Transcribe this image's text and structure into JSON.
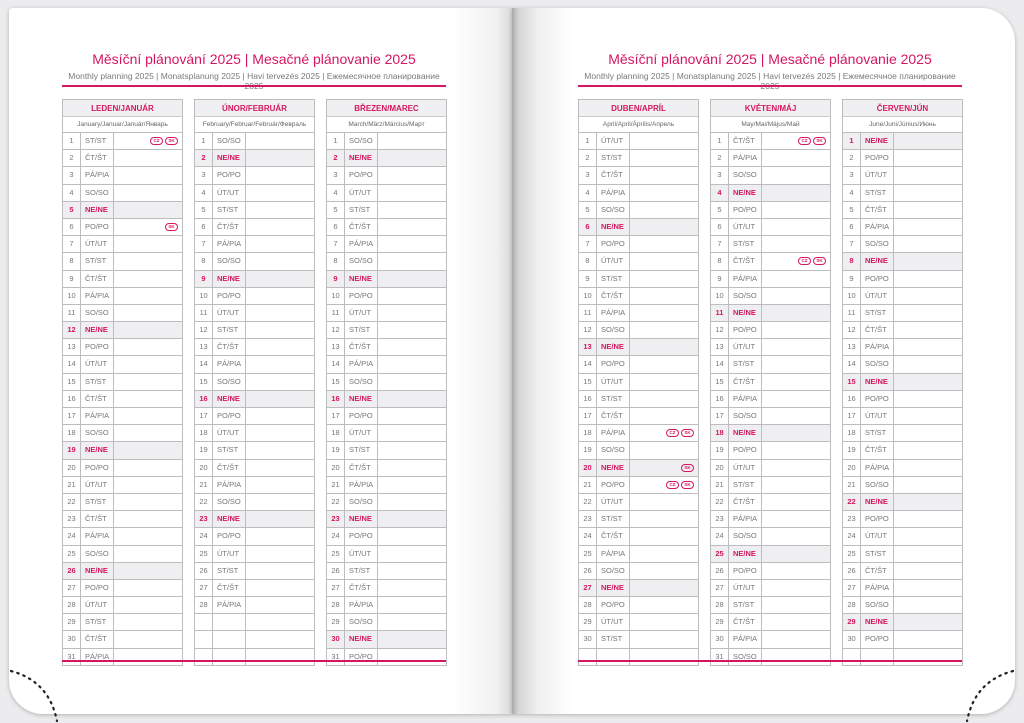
{
  "header": {
    "title": "Měsíční plánování 2025 | Mesačné plánovanie 2025",
    "subtitle": "Monthly planning 2025 | Monatsplanung 2025 | Havi tervezés 2025 | Ежемесячное планирование 2025"
  },
  "colors": {
    "accent": "#d5175f",
    "weekend_fill": "#efeef1",
    "grid": "#bdbdbd"
  },
  "months": [
    {
      "name": "LEDEN/JANUÁR",
      "sub": "January/Januar/Január/Январь",
      "days": [
        "ST/ST",
        "ČT/ŠT",
        "PÁ/PIA",
        "SO/SO",
        "NE/NE",
        "PO/PO",
        "ÚT/UT",
        "ST/ST",
        "ČT/ŠT",
        "PÁ/PIA",
        "SO/SO",
        "NE/NE",
        "PO/PO",
        "ÚT/UT",
        "ST/ST",
        "ČT/ŠT",
        "PÁ/PIA",
        "SO/SO",
        "NE/NE",
        "PO/PO",
        "ÚT/UT",
        "ST/ST",
        "ČT/ŠT",
        "PÁ/PIA",
        "SO/SO",
        "NE/NE",
        "PO/PO",
        "ÚT/UT",
        "ST/ST",
        "ČT/ŠT",
        "PÁ/PIA"
      ],
      "holidays": {
        "1": [
          "CZ",
          "SK"
        ],
        "6": [
          "SK"
        ]
      }
    },
    {
      "name": "ÚNOR/FEBRUÁR",
      "sub": "February/Februar/Február/Февраль",
      "days": [
        "SO/SO",
        "NE/NE",
        "PO/PO",
        "ÚT/UT",
        "ST/ST",
        "ČT/ŠT",
        "PÁ/PIA",
        "SO/SO",
        "NE/NE",
        "PO/PO",
        "ÚT/UT",
        "ST/ST",
        "ČT/ŠT",
        "PÁ/PIA",
        "SO/SO",
        "NE/NE",
        "PO/PO",
        "ÚT/UT",
        "ST/ST",
        "ČT/ŠT",
        "PÁ/PIA",
        "SO/SO",
        "NE/NE",
        "PO/PO",
        "ÚT/UT",
        "ST/ST",
        "ČT/ŠT",
        "PÁ/PIA"
      ],
      "holidays": {}
    },
    {
      "name": "BŘEZEN/MAREC",
      "sub": "March/März/Március/Март",
      "days": [
        "SO/SO",
        "NE/NE",
        "PO/PO",
        "ÚT/UT",
        "ST/ST",
        "ČT/ŠT",
        "PÁ/PIA",
        "SO/SO",
        "NE/NE",
        "PO/PO",
        "ÚT/UT",
        "ST/ST",
        "ČT/ŠT",
        "PÁ/PIA",
        "SO/SO",
        "NE/NE",
        "PO/PO",
        "ÚT/UT",
        "ST/ST",
        "ČT/ŠT",
        "PÁ/PIA",
        "SO/SO",
        "NE/NE",
        "PO/PO",
        "ÚT/UT",
        "ST/ST",
        "ČT/ŠT",
        "PÁ/PIA",
        "SO/SO",
        "NE/NE",
        "PO/PO"
      ],
      "holidays": {}
    },
    {
      "name": "DUBEN/APRÍL",
      "sub": "April/April/Április/Апрель",
      "days": [
        "ÚT/UT",
        "ST/ST",
        "ČT/ŠT",
        "PÁ/PIA",
        "SO/SO",
        "NE/NE",
        "PO/PO",
        "ÚT/UT",
        "ST/ST",
        "ČT/ŠT",
        "PÁ/PIA",
        "SO/SO",
        "NE/NE",
        "PO/PO",
        "ÚT/UT",
        "ST/ST",
        "ČT/ŠT",
        "PÁ/PIA",
        "SO/SO",
        "NE/NE",
        "PO/PO",
        "ÚT/UT",
        "ST/ST",
        "ČT/ŠT",
        "PÁ/PIA",
        "SO/SO",
        "NE/NE",
        "PO/PO",
        "ÚT/UT",
        "ST/ST"
      ],
      "holidays": {
        "18": [
          "CZ",
          "SK"
        ],
        "20": [
          "SK"
        ],
        "21": [
          "CZ",
          "SK"
        ]
      }
    },
    {
      "name": "KVĚTEN/MÁJ",
      "sub": "May/Mai/Május/Май",
      "days": [
        "ČT/ŠT",
        "PÁ/PIA",
        "SO/SO",
        "NE/NE",
        "PO/PO",
        "ÚT/UT",
        "ST/ST",
        "ČT/ŠT",
        "PÁ/PIA",
        "SO/SO",
        "NE/NE",
        "PO/PO",
        "ÚT/UT",
        "ST/ST",
        "ČT/ŠT",
        "PÁ/PIA",
        "SO/SO",
        "NE/NE",
        "PO/PO",
        "ÚT/UT",
        "ST/ST",
        "ČT/ŠT",
        "PÁ/PIA",
        "SO/SO",
        "NE/NE",
        "PO/PO",
        "ÚT/UT",
        "ST/ST",
        "ČT/ŠT",
        "PÁ/PIA",
        "SO/SO"
      ],
      "holidays": {
        "1": [
          "CZ",
          "SK"
        ],
        "8": [
          "CZ",
          "SK"
        ]
      }
    },
    {
      "name": "ČERVEN/JÚN",
      "sub": "June/Juni/Június/Июнь",
      "days": [
        "NE/NE",
        "PO/PO",
        "ÚT/UT",
        "ST/ST",
        "ČT/ŠT",
        "PÁ/PIA",
        "SO/SO",
        "NE/NE",
        "PO/PO",
        "ÚT/UT",
        "ST/ST",
        "ČT/ŠT",
        "PÁ/PIA",
        "SO/SO",
        "NE/NE",
        "PO/PO",
        "ÚT/UT",
        "ST/ST",
        "ČT/ŠT",
        "PÁ/PIA",
        "SO/SO",
        "NE/NE",
        "PO/PO",
        "ÚT/UT",
        "ST/ST",
        "ČT/ŠT",
        "PÁ/PIA",
        "SO/SO",
        "NE/NE",
        "PO/PO"
      ],
      "holidays": {}
    }
  ]
}
